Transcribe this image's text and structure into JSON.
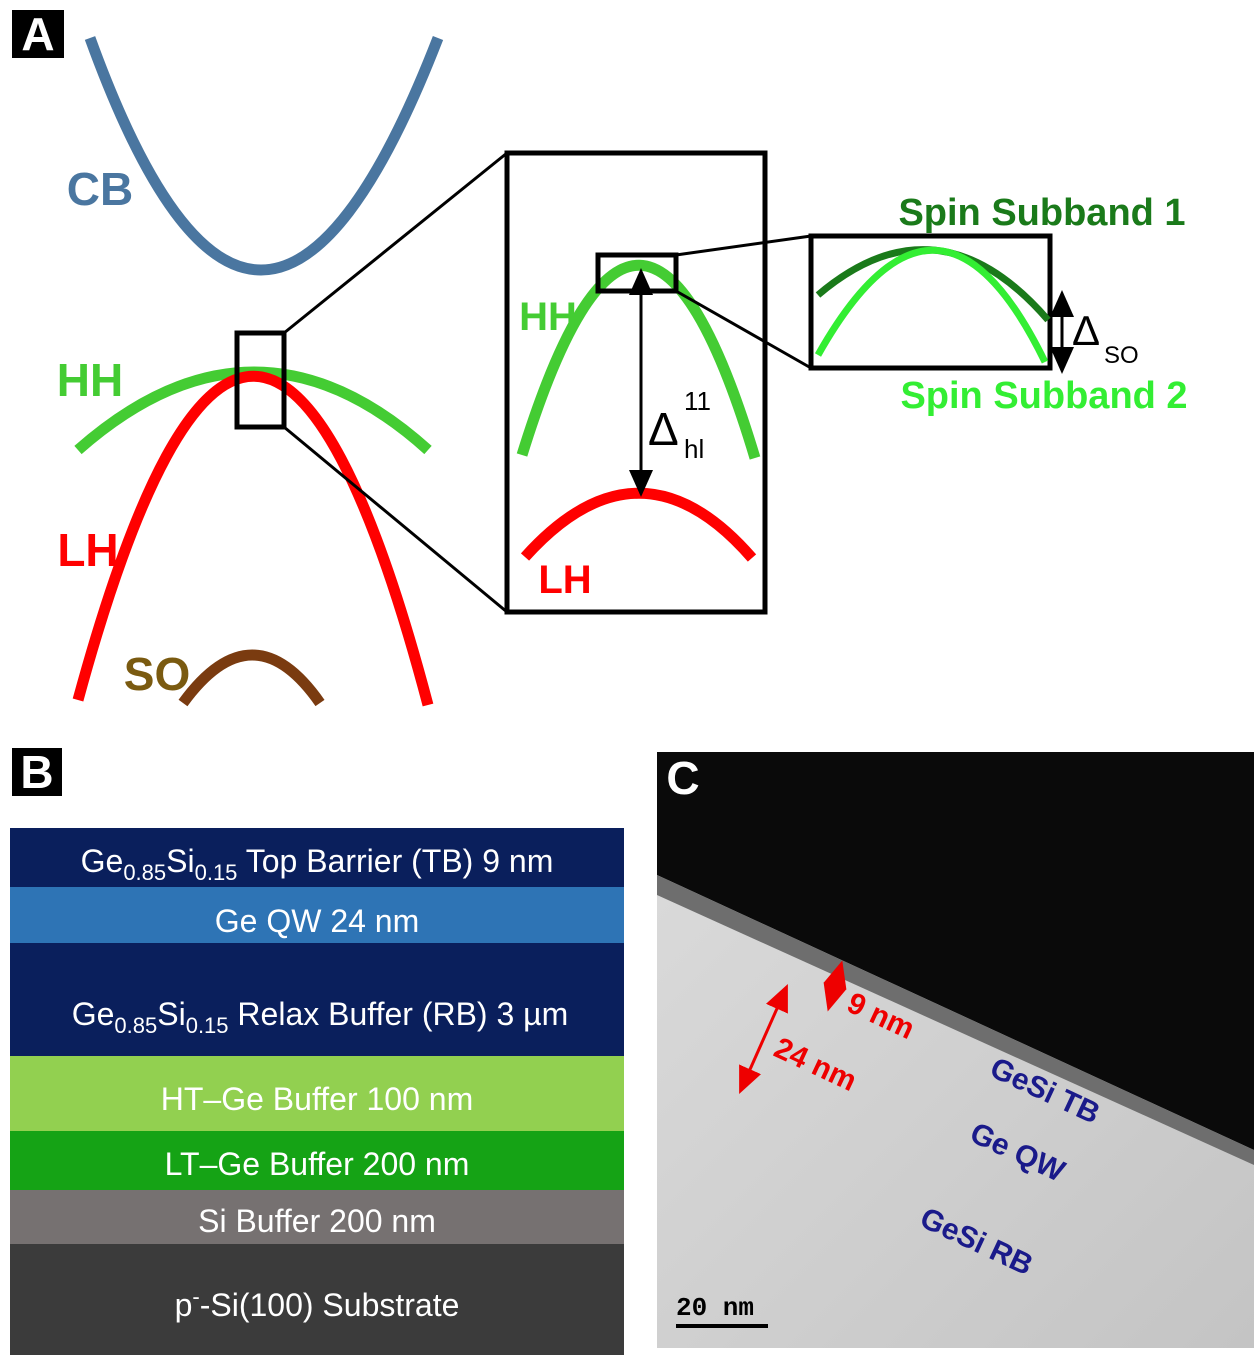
{
  "panel_a": {
    "label": "A",
    "bands": {
      "cb": "CB",
      "hh": "HH",
      "lh": "LH",
      "so": "SO"
    },
    "zoom": {
      "hh": "HH",
      "lh": "LH",
      "delta": {
        "symbol": "Δ",
        "sup": "11",
        "sub": "hl"
      }
    },
    "spin": {
      "subband1": "Spin Subband 1",
      "subband2": "Spin Subband 2",
      "delta": {
        "symbol": "Δ",
        "sub": "SO"
      }
    }
  },
  "panel_b": {
    "label": "B",
    "layers": [
      {
        "base1": "Ge",
        "sub1": "0.85",
        "base2": "Si",
        "sub2": "0.15",
        "rest": " Top Barrier (TB) 9 nm"
      },
      {
        "text": "Ge QW 24 nm"
      },
      {
        "base1": "Ge",
        "sub1": "0.85",
        "base2": "Si",
        "sub2": "0.15",
        "rest": " Relax Buffer (RB) 3 µm"
      },
      {
        "text": "HT–Ge Buffer 100 nm"
      },
      {
        "text": "LT–Ge Buffer 200 nm"
      },
      {
        "text": "Si Buffer 200 nm"
      },
      {
        "base": "p",
        "sup": "-",
        "rest": "-Si(100) Substrate"
      }
    ]
  },
  "panel_c": {
    "label": "C",
    "tb_thickness": "9 nm",
    "qw_thickness": "24 nm",
    "regions": {
      "tb": "GeSi TB",
      "qw": "Ge QW",
      "rb": "GeSi RB"
    },
    "scale_bar": "20 nm"
  }
}
